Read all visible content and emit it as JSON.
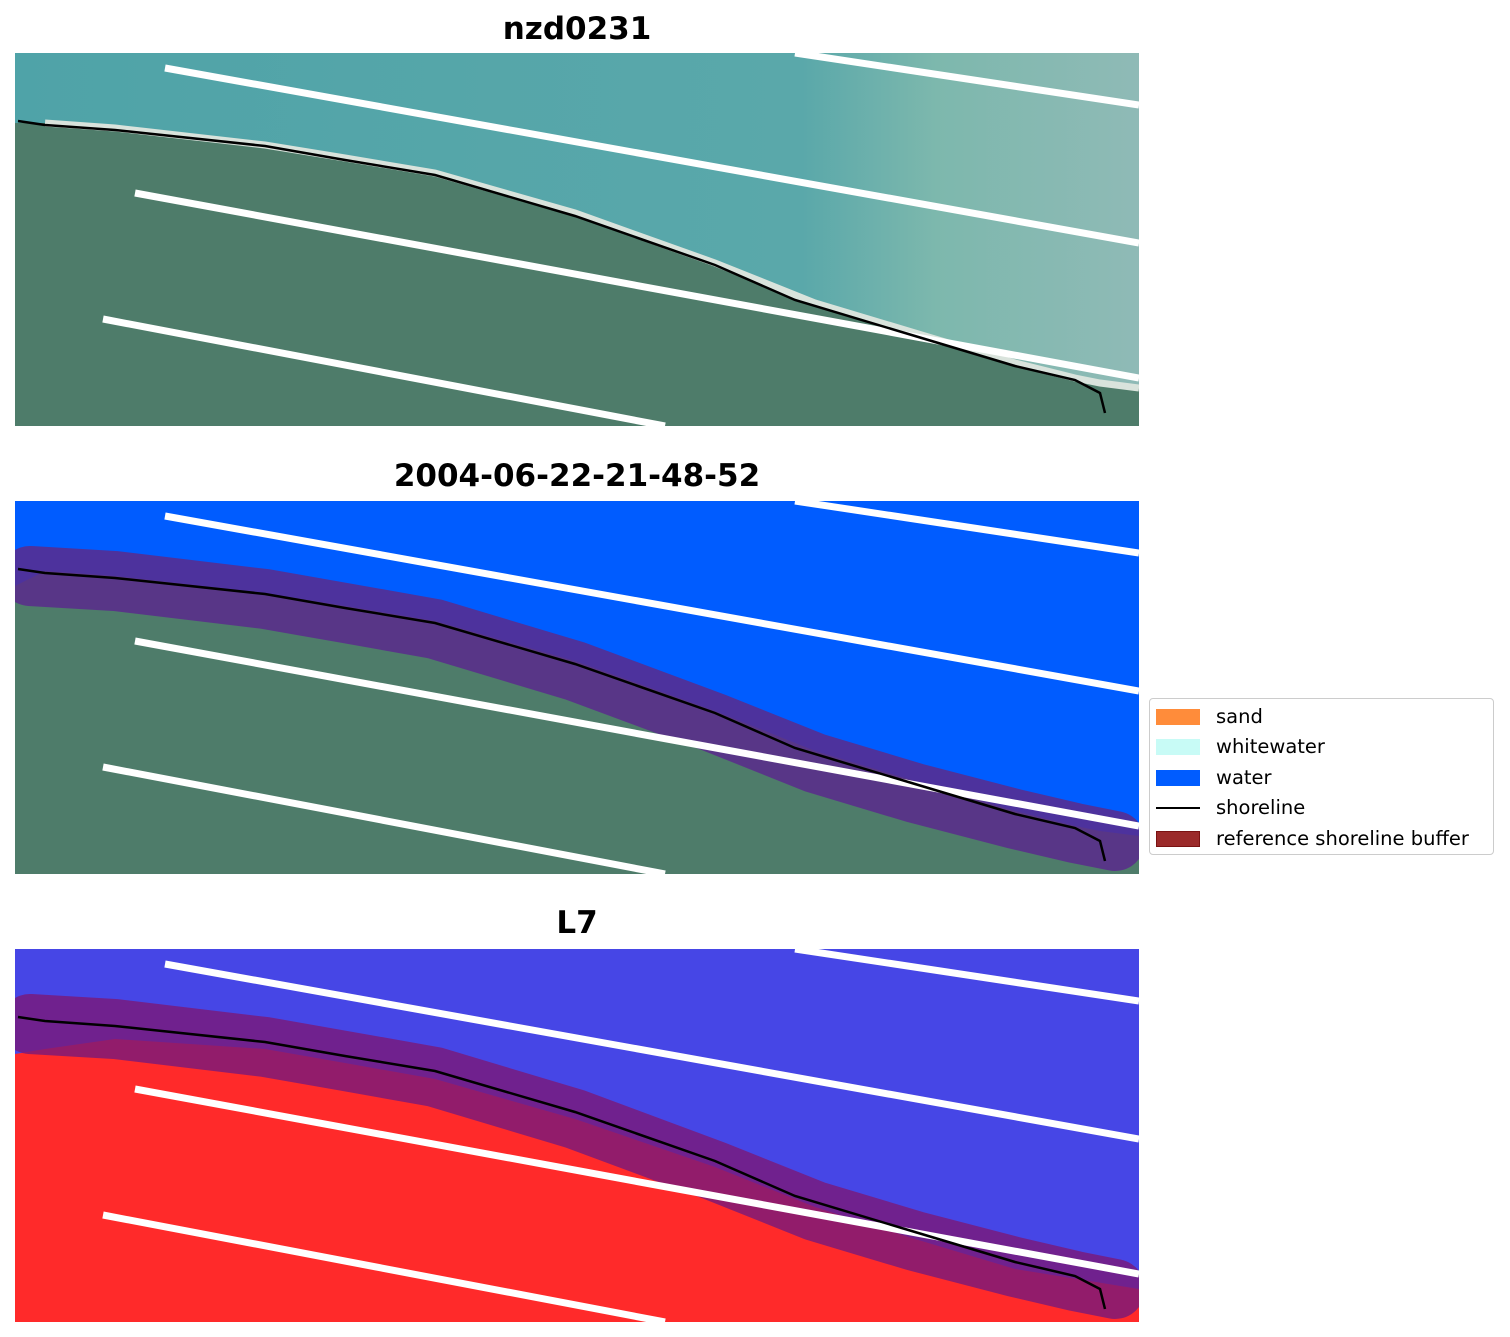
{
  "panels": [
    {
      "title": "nzd0231",
      "kind": "rgb"
    },
    {
      "title": "2004-06-22-21-48-52",
      "kind": "classified"
    },
    {
      "title": "L7",
      "kind": "mndwi"
    }
  ],
  "legend": [
    {
      "label": "sand",
      "type": "patch",
      "color": "#ff8c3a"
    },
    {
      "label": "whitewater",
      "type": "patch",
      "color": "#c8fbf6"
    },
    {
      "label": "water",
      "type": "patch",
      "color": "#005cff"
    },
    {
      "label": "shoreline",
      "type": "line",
      "color": "#000000"
    },
    {
      "label": "reference shoreline buffer",
      "type": "patch",
      "color": "#9b2a2a",
      "edge": "#7a1212"
    }
  ],
  "colors": {
    "land_rgb": "#4f7d6c",
    "sea_rgb": "#5aa9ac",
    "water_class": "#005cff",
    "land_index": "#ff2a2a",
    "water_index": "#4646e6",
    "buffer": "#9b2a2a",
    "shoreline": "#000000",
    "scanline_gap": "#ffffff"
  }
}
